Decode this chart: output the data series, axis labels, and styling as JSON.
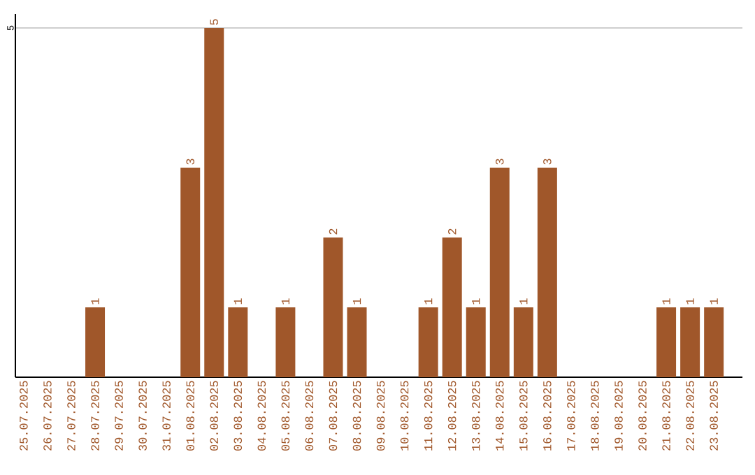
{
  "chart_data": {
    "type": "bar",
    "categories": [
      "25.07.2025",
      "26.07.2025",
      "27.07.2025",
      "28.07.2025",
      "29.07.2025",
      "30.07.2025",
      "31.07.2025",
      "01.08.2025",
      "02.08.2025",
      "03.08.2025",
      "04.08.2025",
      "05.08.2025",
      "06.08.2025",
      "07.08.2025",
      "08.08.2025",
      "09.08.2025",
      "10.08.2025",
      "11.08.2025",
      "12.08.2025",
      "13.08.2025",
      "14.08.2025",
      "15.08.2025",
      "16.08.2025",
      "17.08.2025",
      "18.08.2025",
      "19.08.2025",
      "20.08.2025",
      "21.08.2025",
      "22.08.2025",
      "23.08.2025"
    ],
    "values": [
      0,
      0,
      0,
      1,
      0,
      0,
      0,
      3,
      5,
      1,
      0,
      1,
      0,
      2,
      1,
      0,
      0,
      1,
      2,
      1,
      3,
      1,
      3,
      0,
      0,
      0,
      0,
      1,
      1,
      1
    ],
    "value_labels": [
      null,
      null,
      null,
      "1",
      null,
      null,
      null,
      "3",
      "5",
      "1",
      null,
      "1",
      null,
      "2",
      "1",
      null,
      null,
      "1",
      "2",
      "1",
      "3",
      "1",
      "3",
      null,
      null,
      null,
      null,
      "1",
      "1",
      "1"
    ],
    "color": "#a0572a",
    "ylim": [
      0,
      5.2
    ],
    "yticks": [
      5
    ],
    "grid": "y"
  }
}
